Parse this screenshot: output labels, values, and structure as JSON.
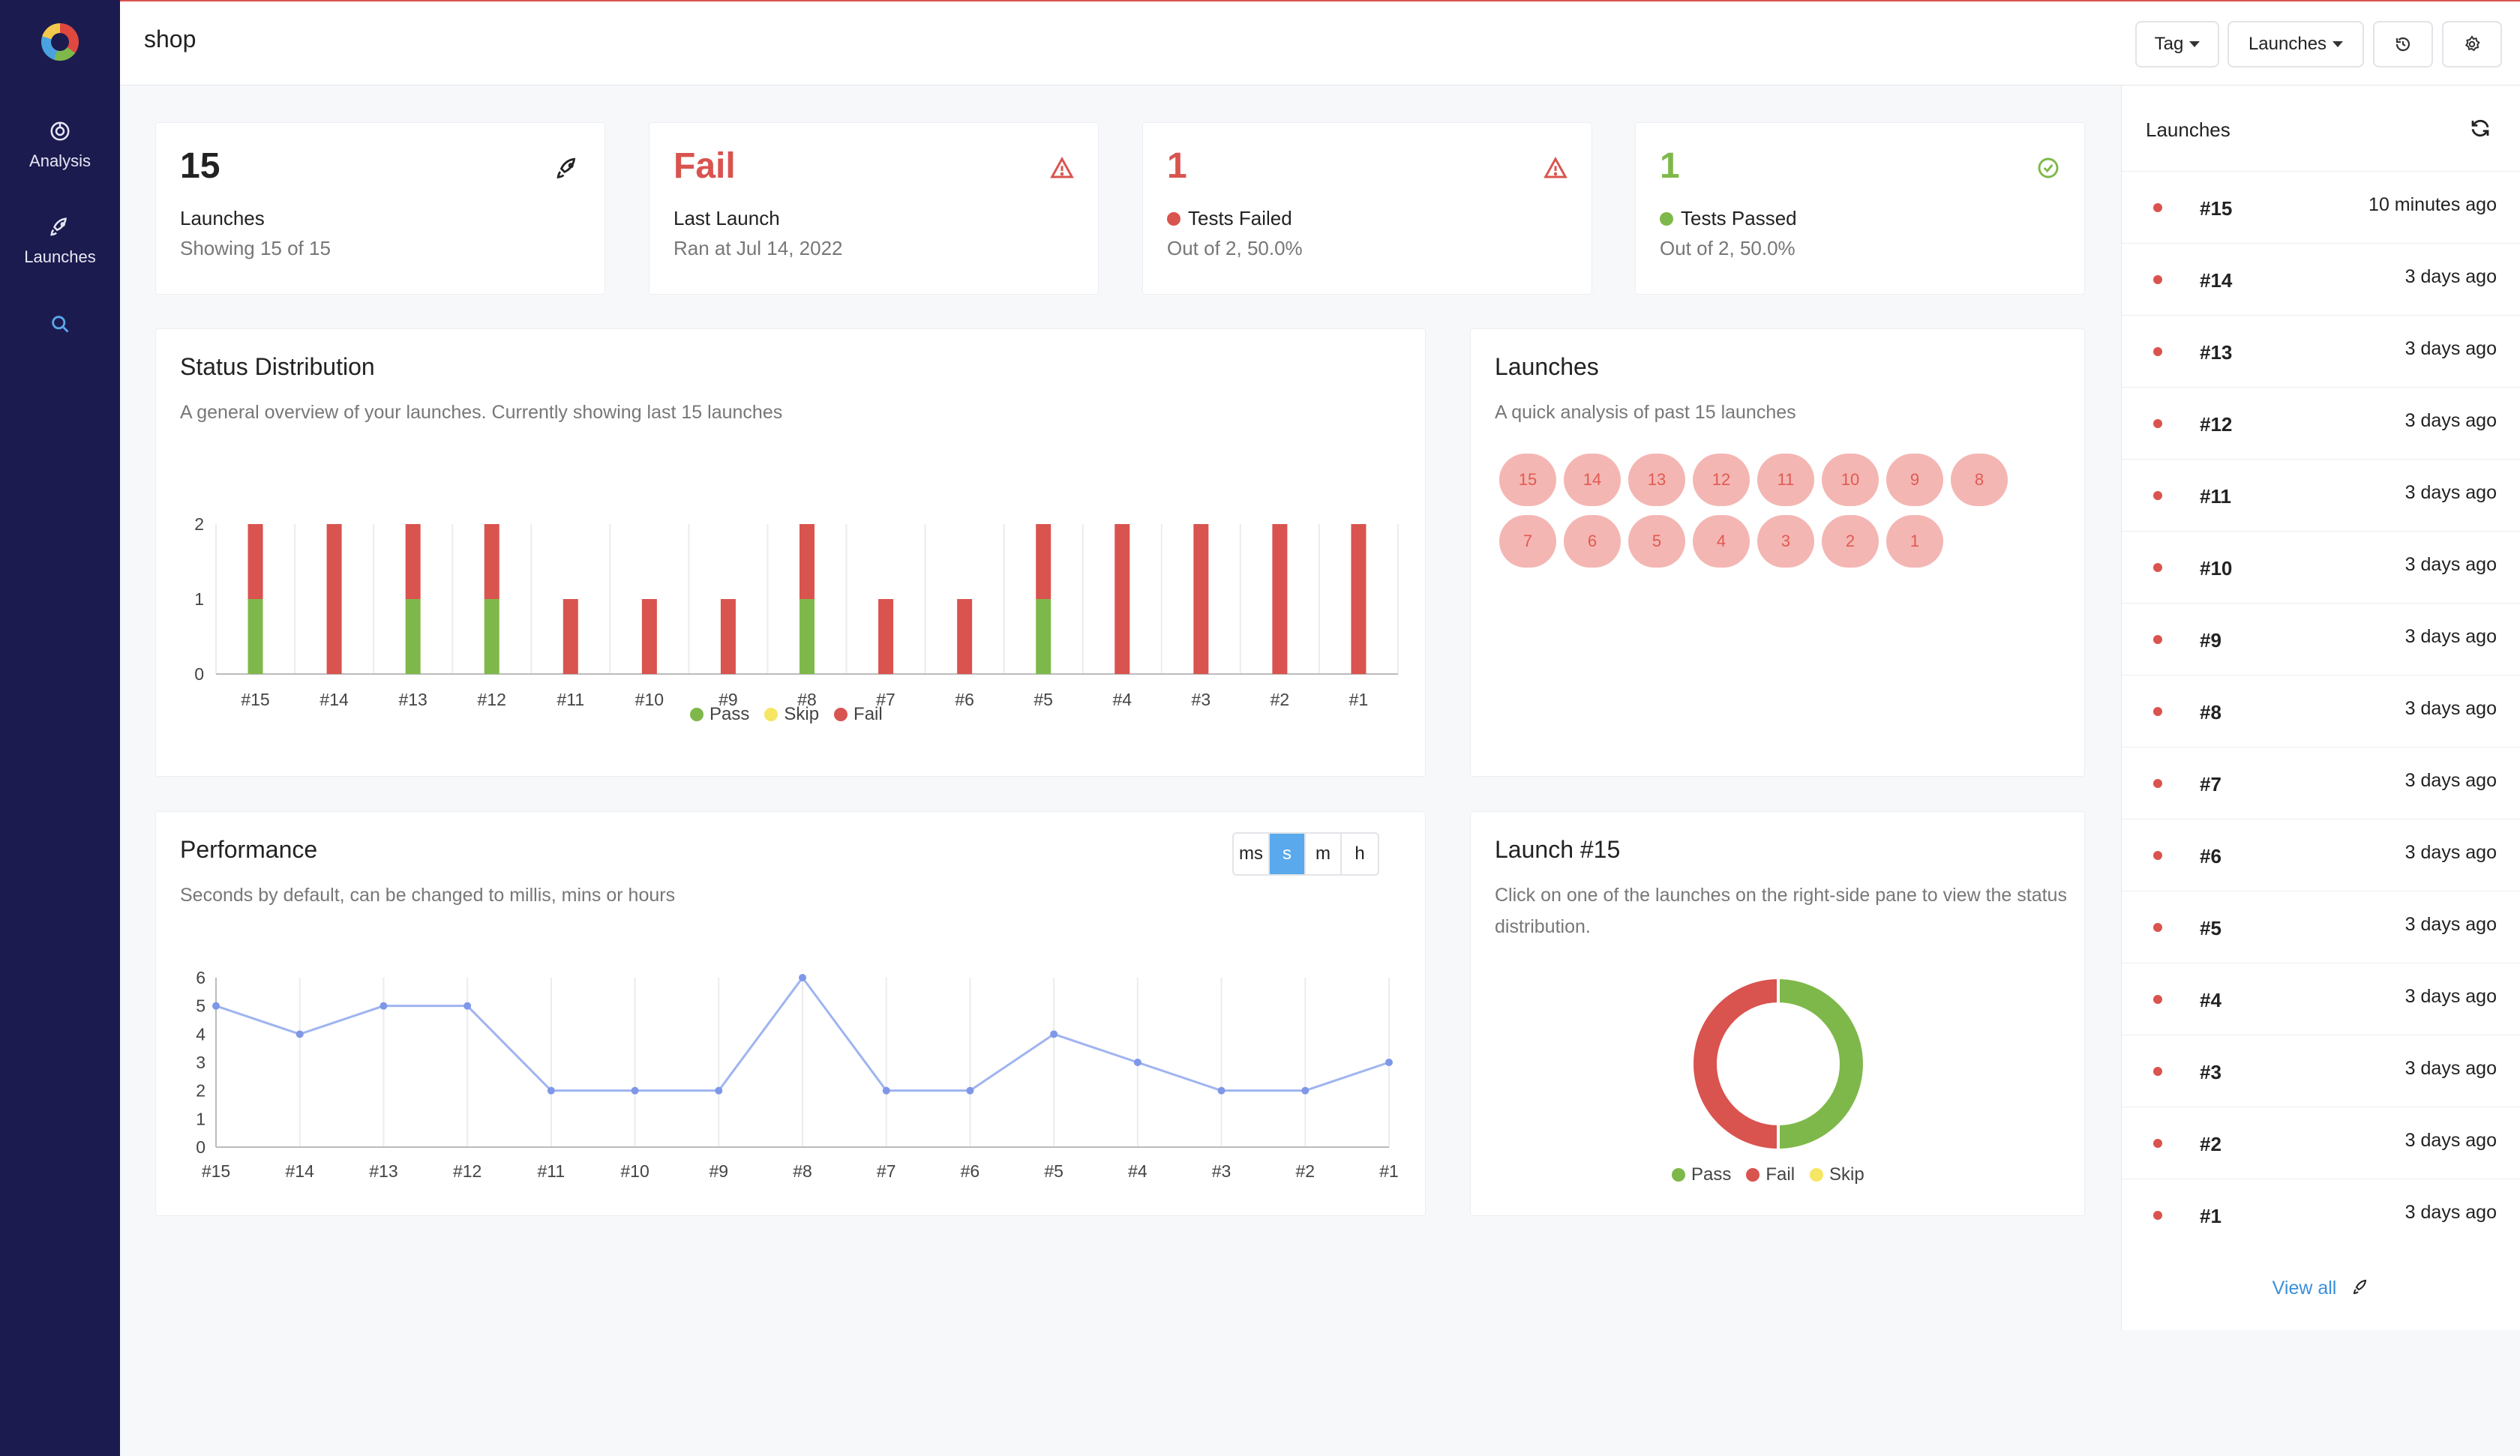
{
  "app": {
    "title": "shop"
  },
  "sidebar": {
    "items": [
      {
        "label": "Analysis",
        "icon": "analysis-icon"
      },
      {
        "label": "Launches",
        "icon": "rocket-icon"
      },
      {
        "label": "",
        "icon": "search-icon"
      }
    ]
  },
  "toolbar": {
    "tag_label": "Tag",
    "launches_label": "Launches"
  },
  "stats": [
    {
      "value": "15",
      "label": "Launches",
      "sub": "Showing 15 of 15",
      "color": "#222222",
      "icon": "rocket-icon"
    },
    {
      "value": "Fail",
      "label": "Last Launch",
      "sub": "Ran at Jul 14, 2022",
      "color": "#d9534f",
      "icon": "warning-icon"
    },
    {
      "value": "1",
      "label": "Tests Failed",
      "sub": "Out of 2, 50.0%",
      "color": "#d9534f",
      "icon": "warning-icon"
    },
    {
      "value": "1",
      "label": "Tests Passed",
      "sub": "Out of 2, 50.0%",
      "color": "#7fb84a",
      "icon": "check-circle-icon"
    }
  ],
  "status_card": {
    "title": "Status Distribution",
    "subtitle": "A general overview of your launches. Currently showing last 15 launches",
    "legend": [
      "Pass",
      "Skip",
      "Fail"
    ]
  },
  "launches_card": {
    "title": "Launches",
    "subtitle": "A quick analysis of past 15 launches",
    "bubbles": [
      "15",
      "14",
      "13",
      "12",
      "11",
      "10",
      "9",
      "8",
      "7",
      "6",
      "5",
      "4",
      "3",
      "2",
      "1"
    ]
  },
  "performance_card": {
    "title": "Performance",
    "subtitle": "Seconds by default, can be changed to millis, mins or hours",
    "units": [
      "ms",
      "s",
      "m",
      "h"
    ],
    "active_unit": "s"
  },
  "launch_detail": {
    "title": "Launch #15",
    "subtitle": "Click on one of the launches on the right-side pane to view the status distribution.",
    "legend": [
      "Pass",
      "Fail",
      "Skip"
    ]
  },
  "right_panel": {
    "title": "Launches",
    "items": [
      {
        "name": "#15",
        "time": "10 minutes ago"
      },
      {
        "name": "#14",
        "time": "3 days ago"
      },
      {
        "name": "#13",
        "time": "3 days ago"
      },
      {
        "name": "#12",
        "time": "3 days ago"
      },
      {
        "name": "#11",
        "time": "3 days ago"
      },
      {
        "name": "#10",
        "time": "3 days ago"
      },
      {
        "name": "#9",
        "time": "3 days ago"
      },
      {
        "name": "#8",
        "time": "3 days ago"
      },
      {
        "name": "#7",
        "time": "3 days ago"
      },
      {
        "name": "#6",
        "time": "3 days ago"
      },
      {
        "name": "#5",
        "time": "3 days ago"
      },
      {
        "name": "#4",
        "time": "3 days ago"
      },
      {
        "name": "#3",
        "time": "3 days ago"
      },
      {
        "name": "#2",
        "time": "3 days ago"
      },
      {
        "name": "#1",
        "time": "3 days ago"
      }
    ],
    "view_all": "View all"
  },
  "colors": {
    "pass": "#7fb84a",
    "skip": "#f5e663",
    "fail": "#d9534f",
    "line": "#9fb4f0",
    "accent": "#5aa9ec"
  },
  "chart_data": [
    {
      "type": "bar",
      "categories": [
        "#15",
        "#14",
        "#13",
        "#12",
        "#11",
        "#10",
        "#9",
        "#8",
        "#7",
        "#6",
        "#5",
        "#4",
        "#3",
        "#2",
        "#1"
      ],
      "series": [
        {
          "name": "Pass",
          "values": [
            1,
            0,
            1,
            1,
            0,
            0,
            0,
            1,
            0,
            0,
            1,
            0,
            0,
            0,
            0
          ]
        },
        {
          "name": "Skip",
          "values": [
            0,
            0,
            0,
            0,
            0,
            0,
            0,
            0,
            0,
            0,
            0,
            0,
            0,
            0,
            0
          ]
        },
        {
          "name": "Fail",
          "values": [
            1,
            2,
            1,
            1,
            1,
            1,
            1,
            1,
            1,
            1,
            1,
            2,
            2,
            2,
            2
          ]
        }
      ],
      "stacked": true,
      "ylim": [
        0,
        2
      ],
      "yticks": [
        0,
        1,
        2
      ],
      "legend": "bottom"
    },
    {
      "type": "line",
      "categories": [
        "#15",
        "#14",
        "#13",
        "#12",
        "#11",
        "#10",
        "#9",
        "#8",
        "#7",
        "#6",
        "#5",
        "#4",
        "#3",
        "#2",
        "#1"
      ],
      "values": [
        5,
        4,
        5,
        5,
        2,
        2,
        2,
        6,
        2,
        2,
        4,
        3,
        2,
        2,
        3
      ],
      "ylim": [
        0,
        6
      ],
      "yticks": [
        0,
        1,
        2,
        3,
        4,
        5,
        6
      ]
    },
    {
      "type": "pie",
      "donut": true,
      "labels": [
        "Pass",
        "Fail",
        "Skip"
      ],
      "values": [
        1,
        1,
        0
      ],
      "legend": "bottom"
    }
  ]
}
